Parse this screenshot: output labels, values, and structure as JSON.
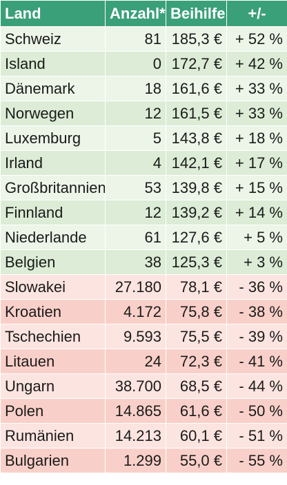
{
  "header": {
    "land": "Land",
    "anzahl": "Anzahl*",
    "beihilfe": "Beihilfe",
    "change": "+/-"
  },
  "colors": {
    "header": "#3aa07a",
    "positive_light": "#ecf5e8",
    "positive_dark": "#dcecd6",
    "negative_light": "#fce4e0",
    "negative_dark": "#f9d0c9"
  },
  "rows": [
    {
      "land": "Schweiz",
      "anzahl": "81",
      "beihilfe": "185,3 €",
      "change": "+ 52 %",
      "sign": "pos"
    },
    {
      "land": "Island",
      "anzahl": "0",
      "beihilfe": "172,7 €",
      "change": "+ 42 %",
      "sign": "pos"
    },
    {
      "land": "Dänemark",
      "anzahl": "18",
      "beihilfe": "161,6 €",
      "change": "+ 33 %",
      "sign": "pos"
    },
    {
      "land": "Norwegen",
      "anzahl": "12",
      "beihilfe": "161,5 €",
      "change": "+ 33 %",
      "sign": "pos"
    },
    {
      "land": "Luxemburg",
      "anzahl": "5",
      "beihilfe": "143,8 €",
      "change": "+ 18 %",
      "sign": "pos"
    },
    {
      "land": "Irland",
      "anzahl": "4",
      "beihilfe": "142,1 €",
      "change": "+ 17 %",
      "sign": "pos"
    },
    {
      "land": "Großbritannien",
      "anzahl": "53",
      "beihilfe": "139,8 €",
      "change": "+ 15 %",
      "sign": "pos"
    },
    {
      "land": "Finnland",
      "anzahl": "12",
      "beihilfe": "139,2 €",
      "change": "+ 14 %",
      "sign": "pos"
    },
    {
      "land": "Niederlande",
      "anzahl": "61",
      "beihilfe": "127,6 €",
      "change": "+ 5 %",
      "sign": "pos"
    },
    {
      "land": "Belgien",
      "anzahl": "38",
      "beihilfe": "125,3 €",
      "change": "+ 3 %",
      "sign": "pos"
    },
    {
      "land": "Slowakei",
      "anzahl": "27.180",
      "beihilfe": "78,1 €",
      "change": "- 36 %",
      "sign": "neg"
    },
    {
      "land": "Kroatien",
      "anzahl": "4.172",
      "beihilfe": "75,8 €",
      "change": "- 38 %",
      "sign": "neg"
    },
    {
      "land": "Tschechien",
      "anzahl": "9.593",
      "beihilfe": "75,5 €",
      "change": "- 39 %",
      "sign": "neg"
    },
    {
      "land": "Litauen",
      "anzahl": "24",
      "beihilfe": "72,3 €",
      "change": "- 41 %",
      "sign": "neg"
    },
    {
      "land": "Ungarn",
      "anzahl": "38.700",
      "beihilfe": "68,5 €",
      "change": "- 44 %",
      "sign": "neg"
    },
    {
      "land": "Polen",
      "anzahl": "14.865",
      "beihilfe": "61,6 €",
      "change": "- 50 %",
      "sign": "neg"
    },
    {
      "land": "Rumänien",
      "anzahl": "14.213",
      "beihilfe": "60,1 €",
      "change": "- 51 %",
      "sign": "neg"
    },
    {
      "land": "Bulgarien",
      "anzahl": "1.299",
      "beihilfe": "55,0 €",
      "change": "- 55 %",
      "sign": "neg"
    }
  ]
}
